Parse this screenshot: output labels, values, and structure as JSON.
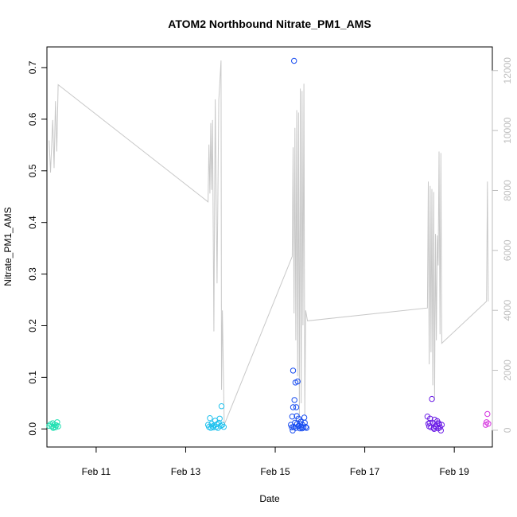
{
  "chart_data": {
    "type": "scatter",
    "title": "ATOM2 Northbound Nitrate_PM1_AMS",
    "xlabel": "Date",
    "ylabel": "Nitrate_PM1_AMS",
    "x_axis": {
      "unit": "days",
      "range": [
        9.9,
        19.85
      ],
      "ticks": [
        {
          "value": 11,
          "label": "Feb 11"
        },
        {
          "value": 13,
          "label": "Feb 13"
        },
        {
          "value": 15,
          "label": "Feb 15"
        },
        {
          "value": 17,
          "label": "Feb 17"
        },
        {
          "value": 19,
          "label": "Feb 19"
        }
      ]
    },
    "y_axis": {
      "range": [
        -0.035,
        0.74
      ],
      "ticks": [
        {
          "value": 0.0,
          "label": "0.0"
        },
        {
          "value": 0.1,
          "label": "0.1"
        },
        {
          "value": 0.2,
          "label": "0.2"
        },
        {
          "value": 0.3,
          "label": "0.3"
        },
        {
          "value": 0.4,
          "label": "0.4"
        },
        {
          "value": 0.5,
          "label": "0.5"
        },
        {
          "value": 0.6,
          "label": "0.6"
        },
        {
          "value": 0.7,
          "label": "0.7"
        }
      ]
    },
    "y2_axis": {
      "range": [
        -560,
        12790
      ],
      "ticks": [
        {
          "value": 0,
          "label": "0"
        },
        {
          "value": 2000,
          "label": "2000"
        },
        {
          "value": 4000,
          "label": "4000"
        },
        {
          "value": 6000,
          "label": "6000"
        },
        {
          "value": 8000,
          "label": "8000"
        },
        {
          "value": 10000,
          "label": "10000"
        },
        {
          "value": 12000,
          "label": "12000"
        }
      ]
    },
    "grid": false,
    "line_color": "#c8c8c8",
    "series": [
      {
        "color": "#22e0b2",
        "points": [
          [
            9.95,
            0.006
          ],
          [
            9.98,
            0.009
          ],
          [
            10.01,
            0.005
          ],
          [
            10.03,
            0.011
          ],
          [
            10.05,
            0.004
          ],
          [
            10.07,
            0.008
          ],
          [
            10.09,
            0.003
          ],
          [
            10.11,
            0.007
          ],
          [
            10.13,
            0.013
          ],
          [
            10.15,
            0.005
          ],
          [
            10.04,
            0.002
          ]
        ]
      },
      {
        "color": "#1ec1ee",
        "points": [
          [
            13.5,
            0.008
          ],
          [
            13.52,
            0.004
          ],
          [
            13.54,
            0.021
          ],
          [
            13.56,
            0.002
          ],
          [
            13.58,
            0.01
          ],
          [
            13.6,
            0.005
          ],
          [
            13.62,
            0.003
          ],
          [
            13.64,
            0.007
          ],
          [
            13.66,
            0.016
          ],
          [
            13.68,
            0.004
          ],
          [
            13.7,
            0.009
          ],
          [
            13.72,
            0.002
          ],
          [
            13.74,
            0.012
          ],
          [
            13.76,
            0.02
          ],
          [
            13.78,
            0.006
          ],
          [
            13.8,
            0.044
          ],
          [
            13.82,
            0.008
          ],
          [
            13.85,
            0.004
          ]
        ]
      },
      {
        "color": "#1a4ef0",
        "points": [
          [
            15.42,
            0.713
          ],
          [
            15.4,
            0.113
          ],
          [
            15.45,
            0.09
          ],
          [
            15.5,
            0.092
          ],
          [
            15.43,
            0.056
          ],
          [
            15.4,
            0.042
          ],
          [
            15.47,
            0.042
          ],
          [
            15.38,
            0.024
          ],
          [
            15.48,
            0.025
          ],
          [
            15.52,
            0.02
          ],
          [
            15.65,
            0.022
          ],
          [
            15.35,
            0.008
          ],
          [
            15.37,
            0.003
          ],
          [
            15.39,
            -0.003
          ],
          [
            15.41,
            0.004
          ],
          [
            15.44,
            0.012
          ],
          [
            15.46,
            0.002
          ],
          [
            15.49,
            0.01
          ],
          [
            15.51,
            0.005
          ],
          [
            15.53,
            0.006
          ],
          [
            15.55,
            0.001
          ],
          [
            15.57,
            0.014
          ],
          [
            15.59,
            0.004
          ],
          [
            15.61,
            0.008
          ],
          [
            15.63,
            0.003
          ],
          [
            15.66,
            0.012
          ],
          [
            15.68,
            0.004
          ],
          [
            15.7,
            0.002
          ],
          [
            15.56,
            0.01
          ],
          [
            15.6,
            0.001
          ]
        ]
      },
      {
        "color": "#6c1ee6",
        "points": [
          [
            18.4,
            0.024
          ],
          [
            18.42,
            0.01
          ],
          [
            18.44,
            0.005
          ],
          [
            18.46,
            0.02
          ],
          [
            18.48,
            0.003
          ],
          [
            18.5,
            0.058
          ],
          [
            18.52,
            0.012
          ],
          [
            18.54,
            0.002
          ],
          [
            18.56,
            0.018
          ],
          [
            18.58,
            0.006
          ],
          [
            18.6,
            0.004
          ],
          [
            18.62,
            0.015
          ],
          [
            18.64,
            0.001
          ],
          [
            18.66,
            0.009
          ],
          [
            18.68,
            0.003
          ],
          [
            18.7,
            -0.003
          ],
          [
            18.72,
            0.008
          ],
          [
            18.45,
            0.012
          ],
          [
            18.55,
            0.0
          ],
          [
            18.65,
            0.011
          ]
        ]
      },
      {
        "color": "#d633e0",
        "points": [
          [
            19.7,
            0.008
          ],
          [
            19.72,
            0.013
          ],
          [
            19.74,
            0.029
          ],
          [
            19.76,
            0.01
          ]
        ]
      }
    ],
    "line_y2": [
      [
        9.95,
        9670
      ],
      [
        9.98,
        8600
      ],
      [
        10.03,
        10350
      ],
      [
        10.06,
        8750
      ],
      [
        10.09,
        10980
      ],
      [
        10.12,
        9300
      ],
      [
        10.15,
        11530
      ],
      [
        13.5,
        7620
      ],
      [
        13.52,
        9530
      ],
      [
        13.54,
        7900
      ],
      [
        13.56,
        10250
      ],
      [
        13.58,
        8020
      ],
      [
        13.6,
        10350
      ],
      [
        13.63,
        3300
      ],
      [
        13.66,
        11040
      ],
      [
        13.7,
        4900
      ],
      [
        13.74,
        11030
      ],
      [
        13.77,
        11800
      ],
      [
        13.79,
        12340
      ],
      [
        13.8,
        1350
      ],
      [
        13.82,
        4000
      ],
      [
        13.86,
        180
      ],
      [
        15.38,
        5800
      ],
      [
        15.4,
        9440
      ],
      [
        15.42,
        3900
      ],
      [
        15.44,
        10090
      ],
      [
        15.46,
        3000
      ],
      [
        15.48,
        10680
      ],
      [
        15.5,
        1800
      ],
      [
        15.52,
        10600
      ],
      [
        15.54,
        400
      ],
      [
        15.56,
        11400
      ],
      [
        15.58,
        900
      ],
      [
        15.6,
        11320
      ],
      [
        15.62,
        3500
      ],
      [
        15.64,
        11560
      ],
      [
        15.66,
        500
      ],
      [
        15.68,
        4000
      ],
      [
        15.72,
        3650
      ],
      [
        18.4,
        4080
      ],
      [
        18.42,
        8300
      ],
      [
        18.44,
        2200
      ],
      [
        18.46,
        8150
      ],
      [
        18.48,
        2600
      ],
      [
        18.5,
        8050
      ],
      [
        18.52,
        1500
      ],
      [
        18.54,
        7950
      ],
      [
        18.56,
        1000
      ],
      [
        18.58,
        6550
      ],
      [
        18.6,
        3000
      ],
      [
        18.62,
        6500
      ],
      [
        18.64,
        5500
      ],
      [
        18.66,
        9300
      ],
      [
        18.68,
        3200
      ],
      [
        18.7,
        9250
      ],
      [
        18.72,
        2900
      ],
      [
        19.72,
        4300
      ],
      [
        19.74,
        8300
      ],
      [
        19.76,
        4300
      ]
    ]
  }
}
